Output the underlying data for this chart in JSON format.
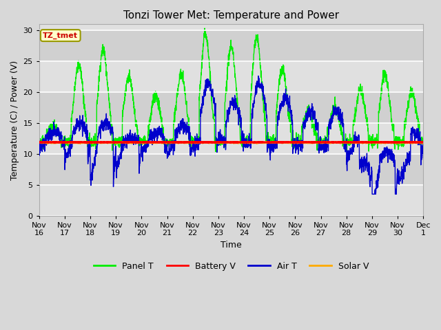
{
  "title": "Tonzi Tower Met: Temperature and Power",
  "xlabel": "Time",
  "ylabel": "Temperature (C) / Power (V)",
  "ylim": [
    0,
    31
  ],
  "yticks": [
    0,
    5,
    10,
    15,
    20,
    25,
    30
  ],
  "bg_color": "#d8d8d8",
  "plot_bg_color": "#e0e0e0",
  "alt_band_color": "#d0d0d0",
  "legend_labels": [
    "Panel T",
    "Battery V",
    "Air T",
    "Solar V"
  ],
  "legend_colors": [
    "#00ee00",
    "#ff0000",
    "#0000cc",
    "#ffaa00"
  ],
  "annotation_text": "TZ_tmet",
  "annotation_fg": "#cc0000",
  "annotation_bg": "#ffffcc",
  "annotation_border": "#999900",
  "xtick_labels": [
    "Nov 16",
    "Nov 17",
    "Nov 18",
    "Nov 19",
    "Nov 20",
    "Nov 21",
    "Nov 22",
    "Nov 23",
    "Nov 24",
    "Nov 25",
    "Nov 26",
    "Nov 27",
    "Nov 28",
    "Nov 29",
    "Nov 30",
    "Dec 1"
  ],
  "battery_v": 11.9,
  "solar_v": 11.85
}
